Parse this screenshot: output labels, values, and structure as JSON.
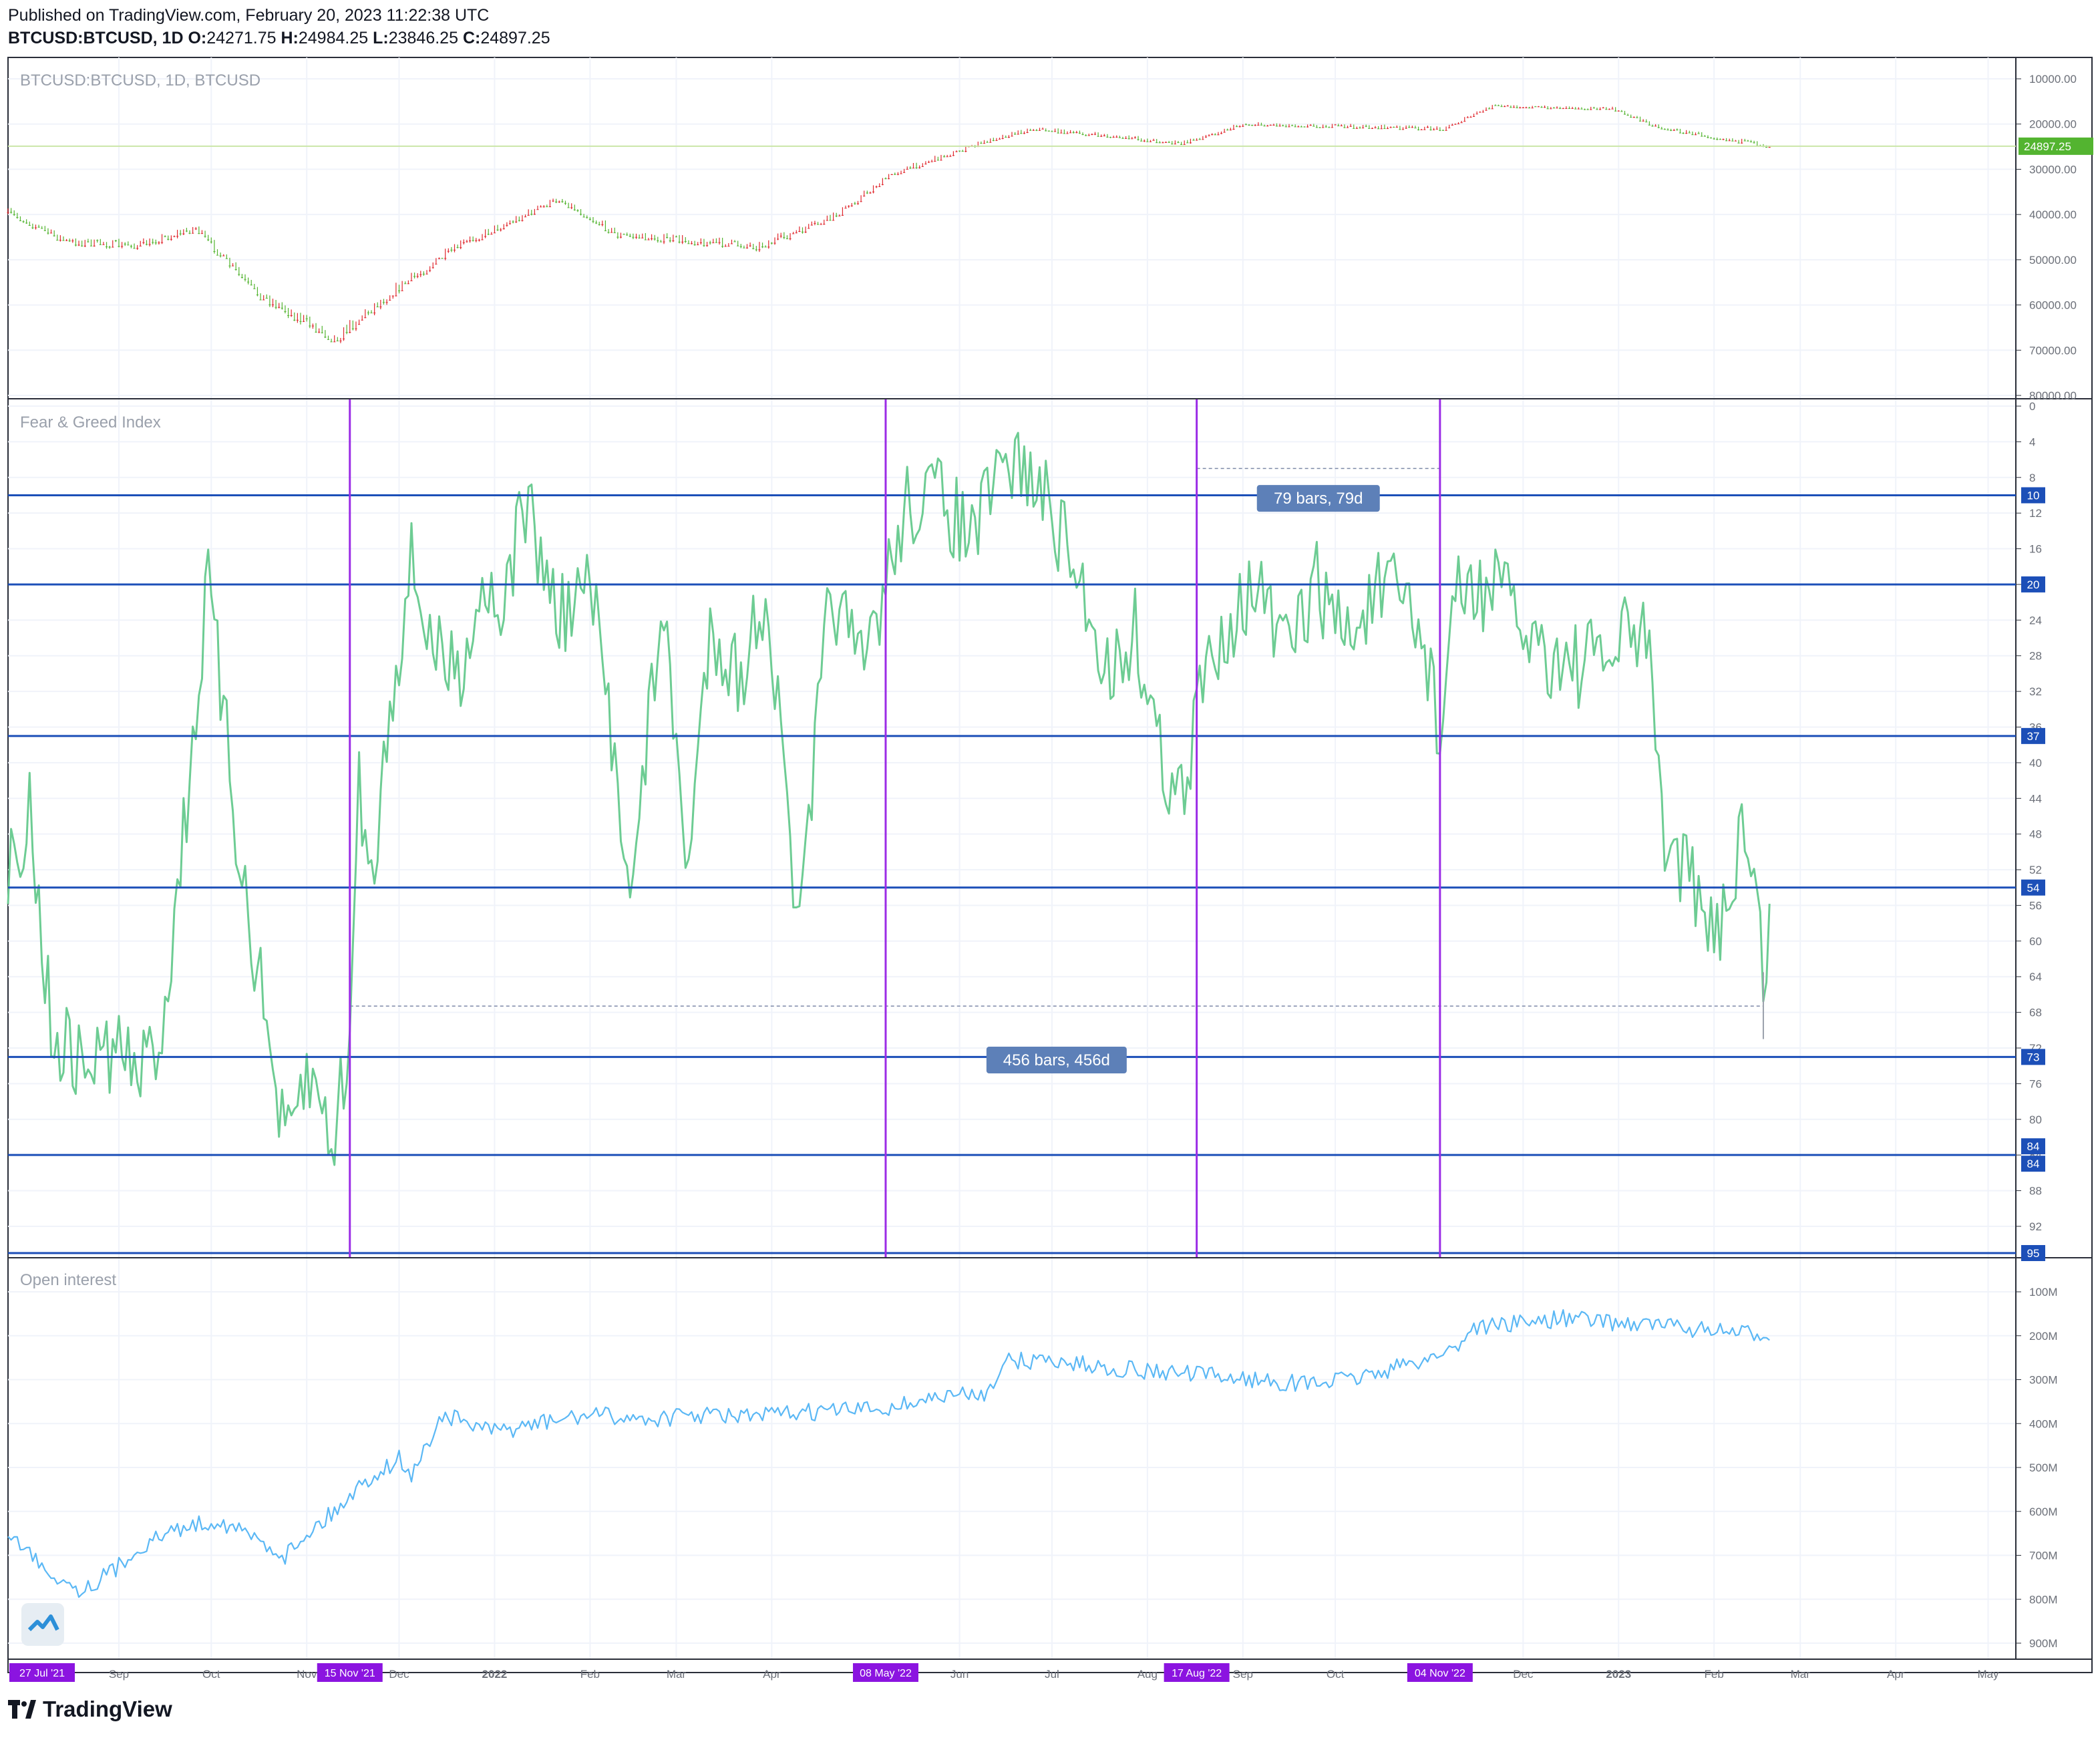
{
  "header": {
    "published": "Published on TradingView.com, February 20, 2023 11:22:38 UTC",
    "symbol": "BTCUSD:BTCUSD, 1D",
    "o_label": "O:",
    "o": "24271.75",
    "h_label": "H:",
    "h": "24984.25",
    "l_label": "L:",
    "l": "23846.25",
    "c_label": "C:",
    "c": "24897.25"
  },
  "footer": {
    "brand": "TradingView"
  },
  "colors": {
    "up": "#26a69a",
    "up_candle": "#53b430",
    "down": "#e0282e",
    "fgi_line": "#6dcc93",
    "oi_line": "#5bb8f5",
    "hline": "#1c4fb8",
    "vline": "#9b2ce6",
    "range_fill": "#dde9fb",
    "last_price_bg": "#53b430",
    "hline_label_bg": "#1c4fb8",
    "date_label_bg": "#8b14e0"
  },
  "chart_data": [
    {
      "type": "candlestick",
      "title": "BTCUSD:BTCUSD, 1D, BTCUSD",
      "y_ticks": [
        "80000.00",
        "70000.00",
        "60000.00",
        "50000.00",
        "40000.00",
        "30000.00",
        "20000.00",
        "10000.00"
      ],
      "ylim": [
        10000,
        80000
      ],
      "last_price": "24897.25",
      "x": [
        "2021-07-27",
        "2021-08-15",
        "2021-09-07",
        "2021-09-26",
        "2021-10-15",
        "2021-11-10",
        "2021-11-28",
        "2021-12-20",
        "2022-01-22",
        "2022-02-10",
        "2022-03-28",
        "2022-04-20",
        "2022-05-10",
        "2022-06-13",
        "2022-06-25",
        "2022-08-12",
        "2022-09-01",
        "2022-11-05",
        "2022-11-21",
        "2022-12-30",
        "2023-01-15",
        "2023-02-19"
      ],
      "values": [
        39500,
        46000,
        46800,
        43000,
        57000,
        67500,
        57500,
        47000,
        36500,
        44500,
        47000,
        41000,
        31000,
        23000,
        21000,
        24300,
        20000,
        21000,
        16000,
        16600,
        20900,
        24897
      ]
    },
    {
      "type": "line",
      "title": "Fear & Greed Index",
      "y_ticks": [
        "92",
        "88",
        "84",
        "80",
        "76",
        "72",
        "68",
        "64",
        "60",
        "56",
        "52",
        "48",
        "44",
        "40",
        "36",
        "32",
        "28",
        "24",
        "20",
        "16",
        "12",
        "8",
        "4",
        "0"
      ],
      "ylim": [
        0,
        95
      ],
      "x": [
        "2021-07-27",
        "2021-08-03",
        "2021-08-10",
        "2021-08-20",
        "2021-08-31",
        "2021-09-08",
        "2021-09-15",
        "2021-09-22",
        "2021-09-30",
        "2021-10-10",
        "2021-10-20",
        "2021-10-25",
        "2021-11-01",
        "2021-11-10",
        "2021-11-15",
        "2021-11-18",
        "2021-11-22",
        "2021-11-28",
        "2021-12-05",
        "2021-12-13",
        "2021-12-20",
        "2021-12-28",
        "2022-01-05",
        "2022-01-10",
        "2022-01-22",
        "2022-02-01",
        "2022-02-10",
        "2022-02-15",
        "2022-02-24",
        "2022-03-05",
        "2022-03-12",
        "2022-03-22",
        "2022-03-30",
        "2022-04-10",
        "2022-04-20",
        "2022-04-30",
        "2022-05-08",
        "2022-05-15",
        "2022-05-25",
        "2022-06-05",
        "2022-06-14",
        "2022-06-20",
        "2022-07-01",
        "2022-07-10",
        "2022-07-20",
        "2022-07-28",
        "2022-08-06",
        "2022-08-14",
        "2022-08-17",
        "2022-08-25",
        "2022-09-05",
        "2022-09-15",
        "2022-09-25",
        "2022-10-05",
        "2022-10-15",
        "2022-10-25",
        "2022-11-01",
        "2022-11-04",
        "2022-11-08",
        "2022-11-14",
        "2022-11-22",
        "2022-12-01",
        "2022-12-10",
        "2022-12-20",
        "2022-12-30",
        "2023-01-05",
        "2023-01-12",
        "2023-01-15",
        "2023-01-22",
        "2023-01-30",
        "2023-02-06",
        "2023-02-10",
        "2023-02-14",
        "2023-02-17",
        "2023-02-19"
      ],
      "values": [
        52,
        45,
        70,
        74,
        72,
        75,
        70,
        48,
        20,
        50,
        72,
        84,
        75,
        82,
        71,
        42,
        54,
        33,
        18,
        28,
        30,
        20,
        22,
        10,
        24,
        20,
        42,
        54,
        22,
        52,
        24,
        31,
        20,
        60,
        20,
        30,
        20,
        11,
        10,
        15,
        8,
        6,
        12,
        20,
        30,
        25,
        40,
        45,
        33,
        25,
        20,
        28,
        20,
        26,
        21,
        22,
        30,
        38,
        22,
        21,
        20,
        25,
        28,
        29,
        28,
        25,
        28,
        48,
        51,
        60,
        55,
        47,
        54,
        63,
        59
      ],
      "horizontal_lines": [
        "95",
        "84",
        "84",
        "73",
        "54",
        "37",
        "20",
        "10"
      ],
      "vertical_line_dates": [
        "15 Nov '21",
        "08 May '22",
        "17 Aug '22",
        "04 Nov '22"
      ],
      "range_labels": [
        "456 bars, 456d",
        "79 bars, 79d"
      ]
    },
    {
      "type": "line",
      "title": "Open interest",
      "y_ticks": [
        "900M",
        "800M",
        "700M",
        "600M",
        "500M",
        "400M",
        "300M",
        "200M",
        "100M"
      ],
      "ylim": [
        100,
        900
      ],
      "x": [
        "2021-07-27",
        "2021-08-10",
        "2021-08-20",
        "2021-08-31",
        "2021-09-08",
        "2021-09-20",
        "2021-10-03",
        "2021-10-15",
        "2021-10-25",
        "2021-11-01",
        "2021-11-10",
        "2021-11-20",
        "2021-12-01",
        "2021-12-05",
        "2021-12-15",
        "2022-01-01",
        "2022-01-15",
        "2022-02-01",
        "2022-02-20",
        "2022-03-10",
        "2022-03-25",
        "2022-04-10",
        "2022-04-25",
        "2022-05-08",
        "2022-05-25",
        "2022-06-10",
        "2022-06-15",
        "2022-06-30",
        "2022-07-15",
        "2022-08-01",
        "2022-08-20",
        "2022-09-05",
        "2022-09-20",
        "2022-10-05",
        "2022-10-20",
        "2022-11-05",
        "2022-11-10",
        "2022-11-15",
        "2022-12-01",
        "2022-12-15",
        "2023-01-01",
        "2023-01-15",
        "2023-02-01",
        "2023-02-19"
      ],
      "values": [
        650,
        740,
        780,
        730,
        680,
        640,
        620,
        660,
        700,
        650,
        600,
        530,
        480,
        520,
        380,
        420,
        400,
        380,
        390,
        380,
        385,
        375,
        370,
        365,
        340,
        330,
        260,
        255,
        270,
        280,
        290,
        300,
        310,
        300,
        275,
        240,
        220,
        180,
        170,
        160,
        170,
        175,
        190,
        200
      ]
    }
  ],
  "time_axis": {
    "ticks": [
      "Sep",
      "Oct",
      "Nov",
      "Dec",
      "2022",
      "Feb",
      "Mar",
      "Apr",
      "Jun",
      "Jul",
      "Aug",
      "Sep",
      "Oct",
      "Dec",
      "2023",
      "Feb",
      "Mar",
      "Apr",
      "May"
    ],
    "highlight_dates": [
      "27 Jul '21",
      "15 Nov '21",
      "08 May '22",
      "17 Aug '22",
      "04 Nov '22"
    ]
  }
}
